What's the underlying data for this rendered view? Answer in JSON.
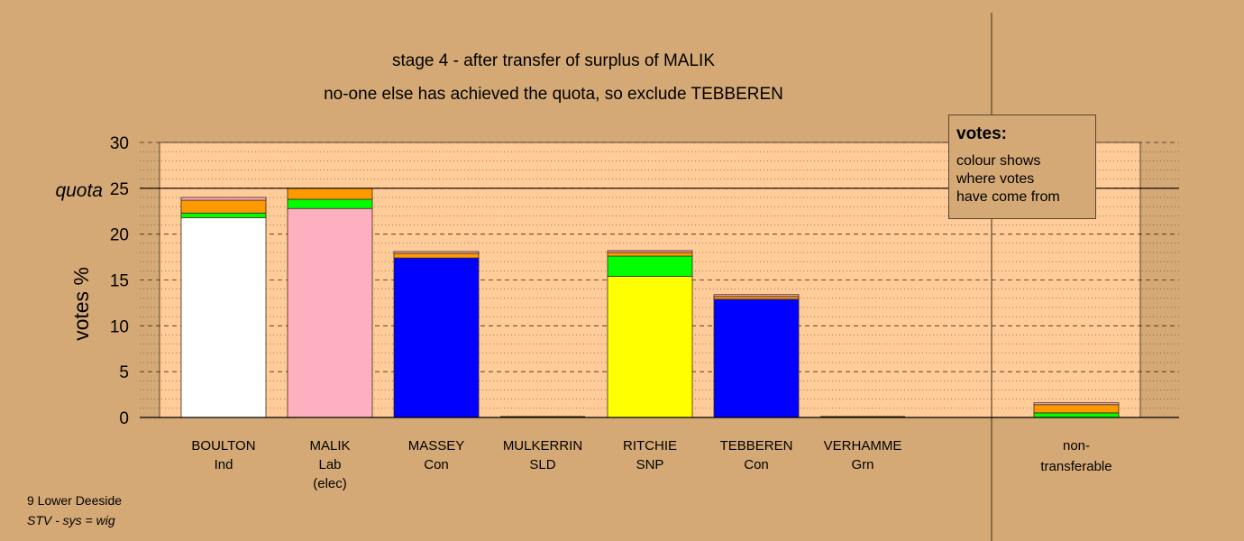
{
  "chart_data": {
    "type": "bar",
    "stacked": true,
    "title": "stage 4 - after transfer of surplus of MALIK",
    "subtitle": "no-one else has achieved the quota, so exclude TEBBEREN",
    "ylabel": "votes %",
    "ylim": [
      0,
      30
    ],
    "yticks": [
      "0",
      "5",
      "10",
      "15",
      "20",
      "25",
      "30"
    ],
    "quota": {
      "label": "quota",
      "value": 25
    },
    "categories": [
      {
        "name": "BOULTON",
        "party": "Ind",
        "note": ""
      },
      {
        "name": "MALIK",
        "party": "Lab",
        "note": "(elec)"
      },
      {
        "name": "MASSEY",
        "party": "Con",
        "note": ""
      },
      {
        "name": "MULKERRIN",
        "party": "SLD",
        "note": ""
      },
      {
        "name": "RITCHIE",
        "party": "SNP",
        "note": ""
      },
      {
        "name": "TEBBEREN",
        "party": "Con",
        "note": ""
      },
      {
        "name": "VERHAMME",
        "party": "Grn",
        "note": ""
      }
    ],
    "nontransferable": {
      "label_line1": "non-",
      "label_line2": "transferable"
    },
    "segment_colors": {
      "Ind": "#ffffff",
      "Lab": "#ffb0c0",
      "Con": "#0000ff",
      "SNP": "#ffff00",
      "Grn": "#00ff00",
      "SLD": "#ff9900",
      "Other": "#ffb0c0"
    },
    "stacks": [
      [
        {
          "from": "Ind",
          "value": 21.8
        },
        {
          "from": "Grn",
          "value": 0.5
        },
        {
          "from": "SLD",
          "value": 1.4
        },
        {
          "from": "Other",
          "value": 0.3
        }
      ],
      [
        {
          "from": "Lab",
          "value": 22.8
        },
        {
          "from": "Grn",
          "value": 1.0
        },
        {
          "from": "SLD",
          "value": 1.2
        }
      ],
      [
        {
          "from": "Con",
          "value": 17.4
        },
        {
          "from": "SLD",
          "value": 0.5
        },
        {
          "from": "Other",
          "value": 0.2
        }
      ],
      [],
      [
        {
          "from": "SNP",
          "value": 15.4
        },
        {
          "from": "Grn",
          "value": 2.2
        },
        {
          "from": "SLD",
          "value": 0.4
        },
        {
          "from": "Other",
          "value": 0.2
        }
      ],
      [
        {
          "from": "Con",
          "value": 12.9
        },
        {
          "from": "SLD",
          "value": 0.3
        },
        {
          "from": "Other",
          "value": 0.2
        }
      ],
      [],
      [
        {
          "from": "Grn",
          "value": 0.5
        },
        {
          "from": "SLD",
          "value": 0.9
        },
        {
          "from": "Other",
          "value": 0.2
        }
      ]
    ],
    "grid": true
  },
  "legend": {
    "title": "votes:",
    "lines": [
      "colour shows",
      "where votes",
      "have come from"
    ]
  },
  "footer": {
    "line1": "9 Lower Deeside",
    "line2": "STV - sys = wig"
  }
}
